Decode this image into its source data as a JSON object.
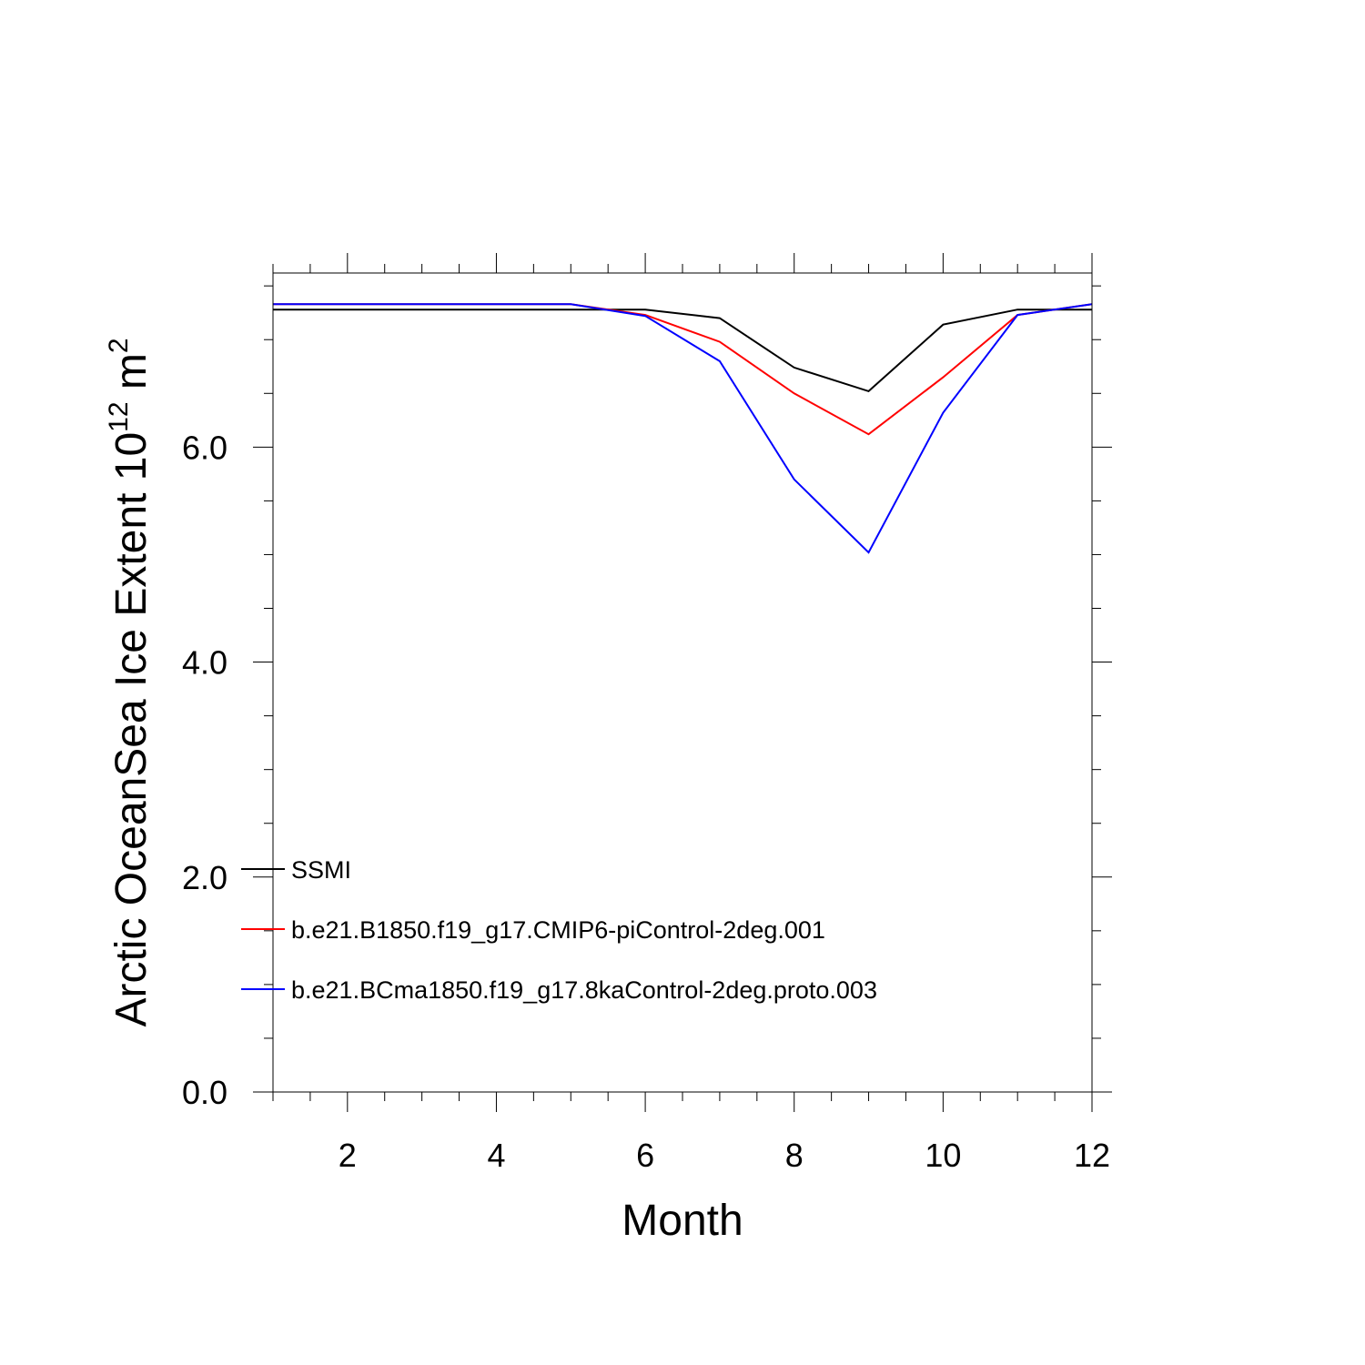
{
  "chart_data": {
    "type": "line",
    "xlabel": "Month",
    "ylabel_base": "Arctic OceanSea Ice Extent 10",
    "ylabel_sup1": "12",
    "ylabel_mid": " m",
    "ylabel_sup2": "2",
    "xlim": [
      1,
      12
    ],
    "ylim": [
      0,
      7.62
    ],
    "x_ticks": [
      2,
      4,
      6,
      8,
      10,
      12
    ],
    "x_tick_labels": [
      "2",
      "4",
      "6",
      "8",
      "10",
      "12"
    ],
    "y_ticks": [
      0,
      2,
      4,
      6
    ],
    "y_tick_labels": [
      "0.0",
      "2.0",
      "4.0",
      "6.0"
    ],
    "x_minor_step": 0.5,
    "y_minor_step": 0.5,
    "grid": false,
    "legend_position": "bottom-left",
    "x": [
      1,
      2,
      3,
      4,
      5,
      6,
      7,
      8,
      9,
      10,
      11,
      12
    ],
    "series": [
      {
        "name": "SSMI",
        "color": "#000000",
        "values": [
          7.28,
          7.28,
          7.28,
          7.28,
          7.28,
          7.28,
          7.2,
          6.74,
          6.52,
          7.14,
          7.28,
          7.28
        ]
      },
      {
        "name": "b.e21.B1850.f19_g17.CMIP6-piControl-2deg.001",
        "color": "#ff0000",
        "values": [
          7.33,
          7.33,
          7.33,
          7.33,
          7.33,
          7.23,
          6.98,
          6.5,
          6.12,
          6.65,
          7.23,
          7.33
        ]
      },
      {
        "name": "b.e21.BCma1850.f19_g17.8kaControl-2deg.proto.003",
        "color": "#0000ff",
        "values": [
          7.33,
          7.33,
          7.33,
          7.33,
          7.33,
          7.22,
          6.8,
          5.7,
          5.02,
          6.32,
          7.23,
          7.33
        ]
      }
    ]
  }
}
